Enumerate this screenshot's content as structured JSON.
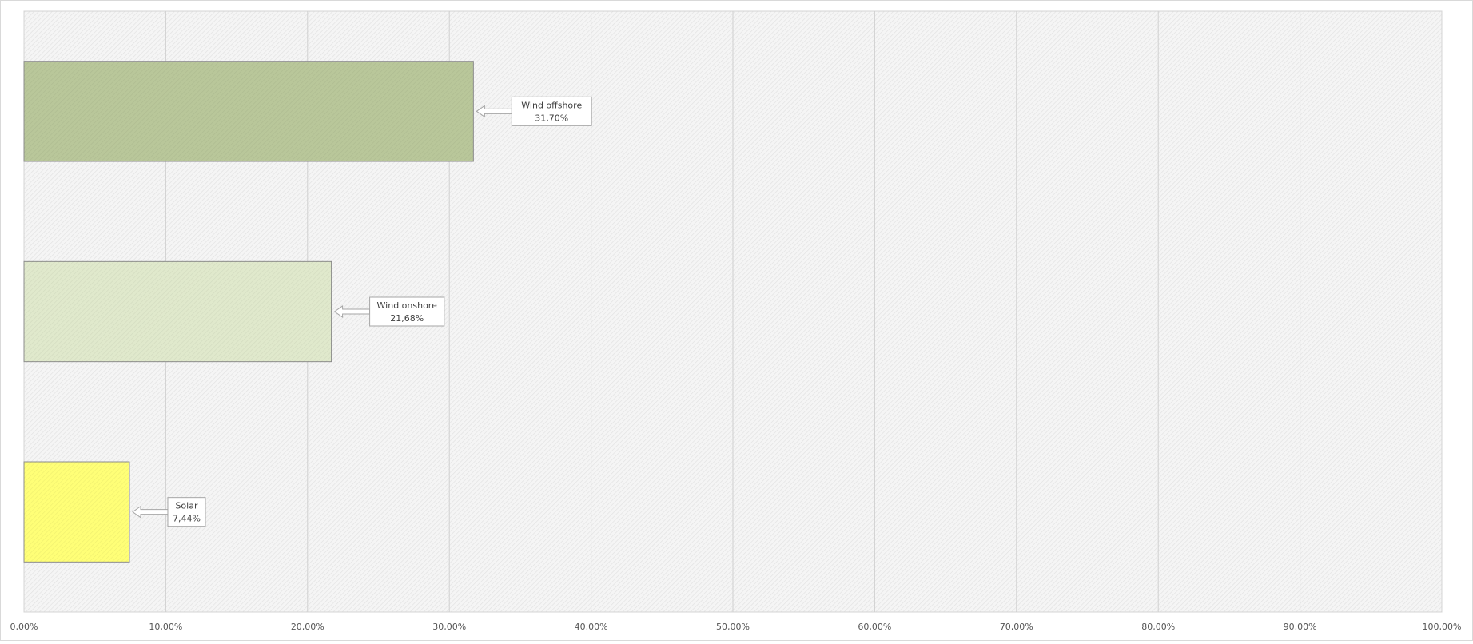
{
  "chart_data": {
    "type": "bar",
    "orientation": "horizontal",
    "categories": [
      "Wind offshore",
      "Wind onshore",
      "Solar"
    ],
    "values": [
      31.7,
      21.68,
      7.44
    ],
    "value_labels": [
      "31,70%",
      "21,68%",
      "7,44%"
    ],
    "colors": [
      "#b9c79a",
      "#e0e9cc",
      "#ffff77"
    ],
    "xlim": [
      0,
      100
    ],
    "xticks": [
      "0,00%",
      "10,00%",
      "20,00%",
      "30,00%",
      "40,00%",
      "50,00%",
      "60,00%",
      "70,00%",
      "80,00%",
      "90,00%",
      "100,00%"
    ],
    "grid": true,
    "legend": "none",
    "title": "",
    "xlabel": "",
    "ylabel": ""
  }
}
